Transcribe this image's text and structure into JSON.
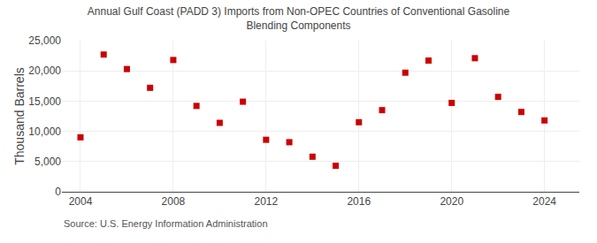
{
  "chart_data": {
    "type": "scatter",
    "title": "Annual Gulf Coast (PADD 3) Imports from Non-OPEC Countries of Conventional Gasoline\nBlending Components",
    "ylabel": "Thousand Barrels",
    "annotation": "Source: U.S. Energy Information Administration",
    "x": [
      2004,
      2005,
      2006,
      2007,
      2008,
      2009,
      2010,
      2011,
      2012,
      2013,
      2014,
      2015,
      2016,
      2017,
      2018,
      2019,
      2020,
      2021,
      2022,
      2023,
      2024
    ],
    "values": [
      9000,
      22700,
      20300,
      17200,
      21800,
      14200,
      11400,
      14900,
      8600,
      8200,
      5800,
      4300,
      11500,
      13500,
      19700,
      21700,
      14700,
      22100,
      15700,
      13200,
      11800
    ],
    "color": "#cc0000",
    "marker": "square",
    "xlim": [
      2003.2,
      2025.5
    ],
    "ylim": [
      0,
      25000
    ],
    "xticks": [
      2004,
      2008,
      2012,
      2016,
      2020,
      2024
    ],
    "yticks": [
      0,
      {
        "value": 5000,
        "label": "5,000"
      },
      {
        "value": 10000,
        "label": "10,000"
      },
      {
        "value": 15000,
        "label": "15,000"
      },
      {
        "value": 20000,
        "label": "20,000"
      },
      {
        "value": 25000,
        "label": "25,000"
      }
    ],
    "grid": true
  }
}
